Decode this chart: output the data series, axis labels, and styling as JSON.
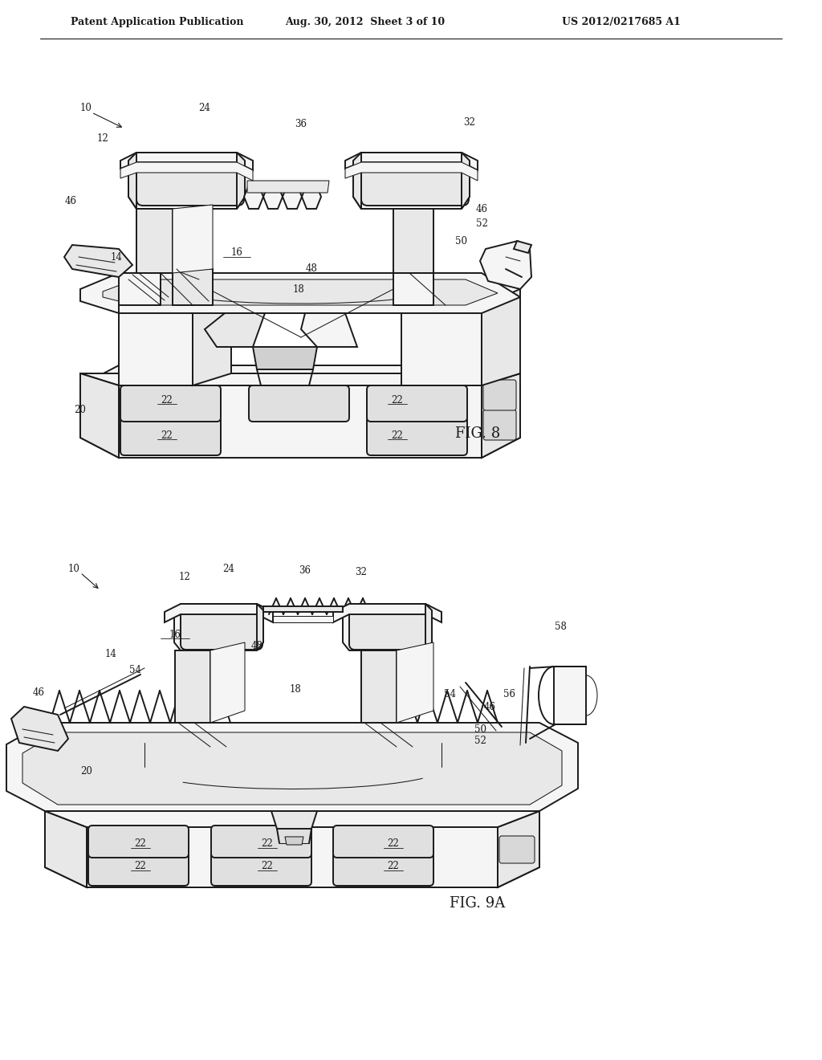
{
  "background_color": "#ffffff",
  "header_left": "Patent Application Publication",
  "header_mid": "Aug. 30, 2012  Sheet 3 of 10",
  "header_right": "US 2012/0217685 A1",
  "header_fontsize": 9,
  "fig8_label": "FIG. 8",
  "fig9a_label": "FIG. 9A",
  "line_color": "#1a1a1a",
  "text_color": "#1a1a1a",
  "lw_main": 1.4,
  "lw_thin": 0.75,
  "fill_light": "#f5f5f5",
  "fill_mid": "#e8e8e8",
  "fill_dark": "#d0d0d0"
}
